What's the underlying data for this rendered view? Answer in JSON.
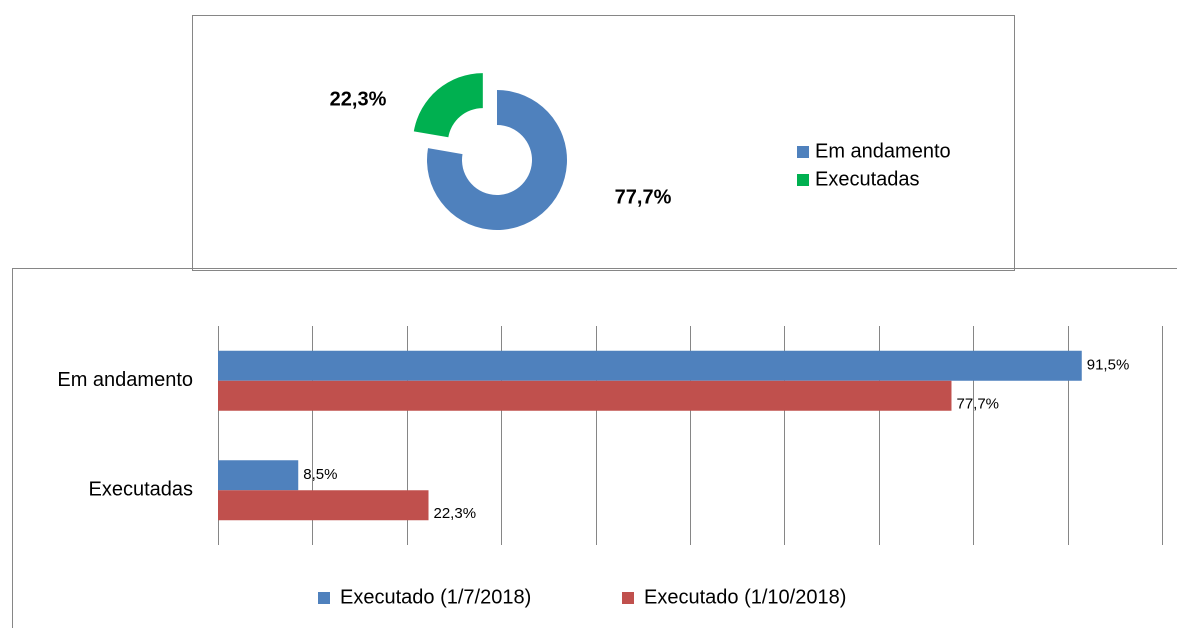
{
  "chart_data": [
    {
      "type": "pie",
      "categories": [
        "Em andamento",
        "Executadas"
      ],
      "values": [
        77.7,
        22.3
      ],
      "value_labels": [
        "77,7%",
        "22,3%"
      ],
      "colors": [
        "#4f81bd",
        "#00b050"
      ],
      "legend": "right"
    },
    {
      "type": "barh",
      "categories": [
        "Em andamento",
        "Executadas"
      ],
      "series": [
        {
          "name": "Executado (1/7/2018)",
          "color": "#4f81bd",
          "values": [
            91.5,
            8.5
          ],
          "value_labels": [
            "91,5%",
            "8,5%"
          ]
        },
        {
          "name": "Executado (1/10/2018)",
          "color": "#c0504d",
          "values": [
            77.7,
            22.3
          ],
          "value_labels": [
            "77,7%",
            "22,3%"
          ]
        }
      ],
      "xlim": [
        0,
        100
      ],
      "xticks": [
        0,
        10,
        20,
        30,
        40,
        50,
        60,
        70,
        80,
        90,
        100
      ],
      "grid": true,
      "legend": "bottom"
    }
  ]
}
